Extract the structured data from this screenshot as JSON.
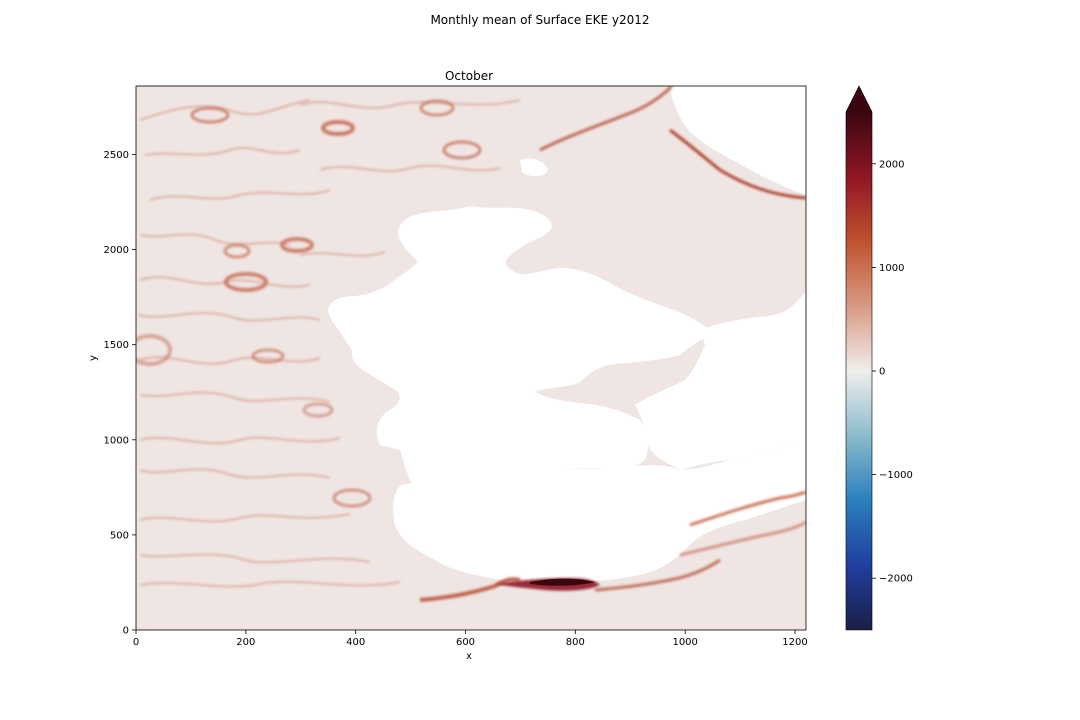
{
  "figure": {
    "suptitle": "Monthly mean of Surface EKE y2012"
  },
  "chart_data": {
    "type": "heatmap",
    "title": "October",
    "xlabel": "x",
    "ylabel": "y",
    "xlim": [
      0,
      1220
    ],
    "ylim": [
      0,
      2860
    ],
    "xticks": [
      0,
      200,
      400,
      600,
      800,
      1000,
      1200
    ],
    "yticks": [
      0,
      500,
      1000,
      1500,
      2000,
      2500
    ],
    "colorbar": {
      "ticks": [
        2000,
        1000,
        0,
        -1000,
        -2000
      ],
      "tick_labels": [
        "2000",
        "1000",
        "0",
        "−1000",
        "−2000"
      ],
      "vmin": -2500,
      "vmax": 2500,
      "extend": "max",
      "colormap": [
        "#1a1f46",
        "#1f3fa0",
        "#2a7fbd",
        "#8cbccc",
        "#f0eeec",
        "#d99a84",
        "#c0522e",
        "#8f1625",
        "#3a0710"
      ]
    },
    "ocean_background_color": "#efe6e4",
    "land_color": "#ffffff",
    "features": [
      {
        "kind": "eddy-ring",
        "x": 200,
        "y": 1830,
        "intensity": 650
      },
      {
        "kind": "eddy-ring",
        "x": 300,
        "y": 2030,
        "intensity": 600
      },
      {
        "kind": "eddy-ring",
        "x": 185,
        "y": 2000,
        "intensity": 500
      },
      {
        "kind": "eddy-ring",
        "x": 370,
        "y": 2620,
        "intensity": 700
      },
      {
        "kind": "eddy-ring",
        "x": 550,
        "y": 2560,
        "intensity": 650
      },
      {
        "kind": "eddy-ring",
        "x": 420,
        "y": 2750,
        "intensity": 450
      },
      {
        "kind": "eddy-ring",
        "x": 240,
        "y": 1450,
        "intensity": 450
      },
      {
        "kind": "eddy-ring",
        "x": 400,
        "y": 690,
        "intensity": 400
      },
      {
        "kind": "eddy-ring",
        "x": 40,
        "y": 1430,
        "intensity": 500
      },
      {
        "kind": "strong-jet",
        "x": 790,
        "y": 240,
        "intensity": 2500
      },
      {
        "kind": "boundary-current",
        "x": 1150,
        "y": 2270,
        "intensity": 1800
      },
      {
        "kind": "boundary-current",
        "x": 1100,
        "y": 560,
        "intensity": 900
      }
    ]
  }
}
